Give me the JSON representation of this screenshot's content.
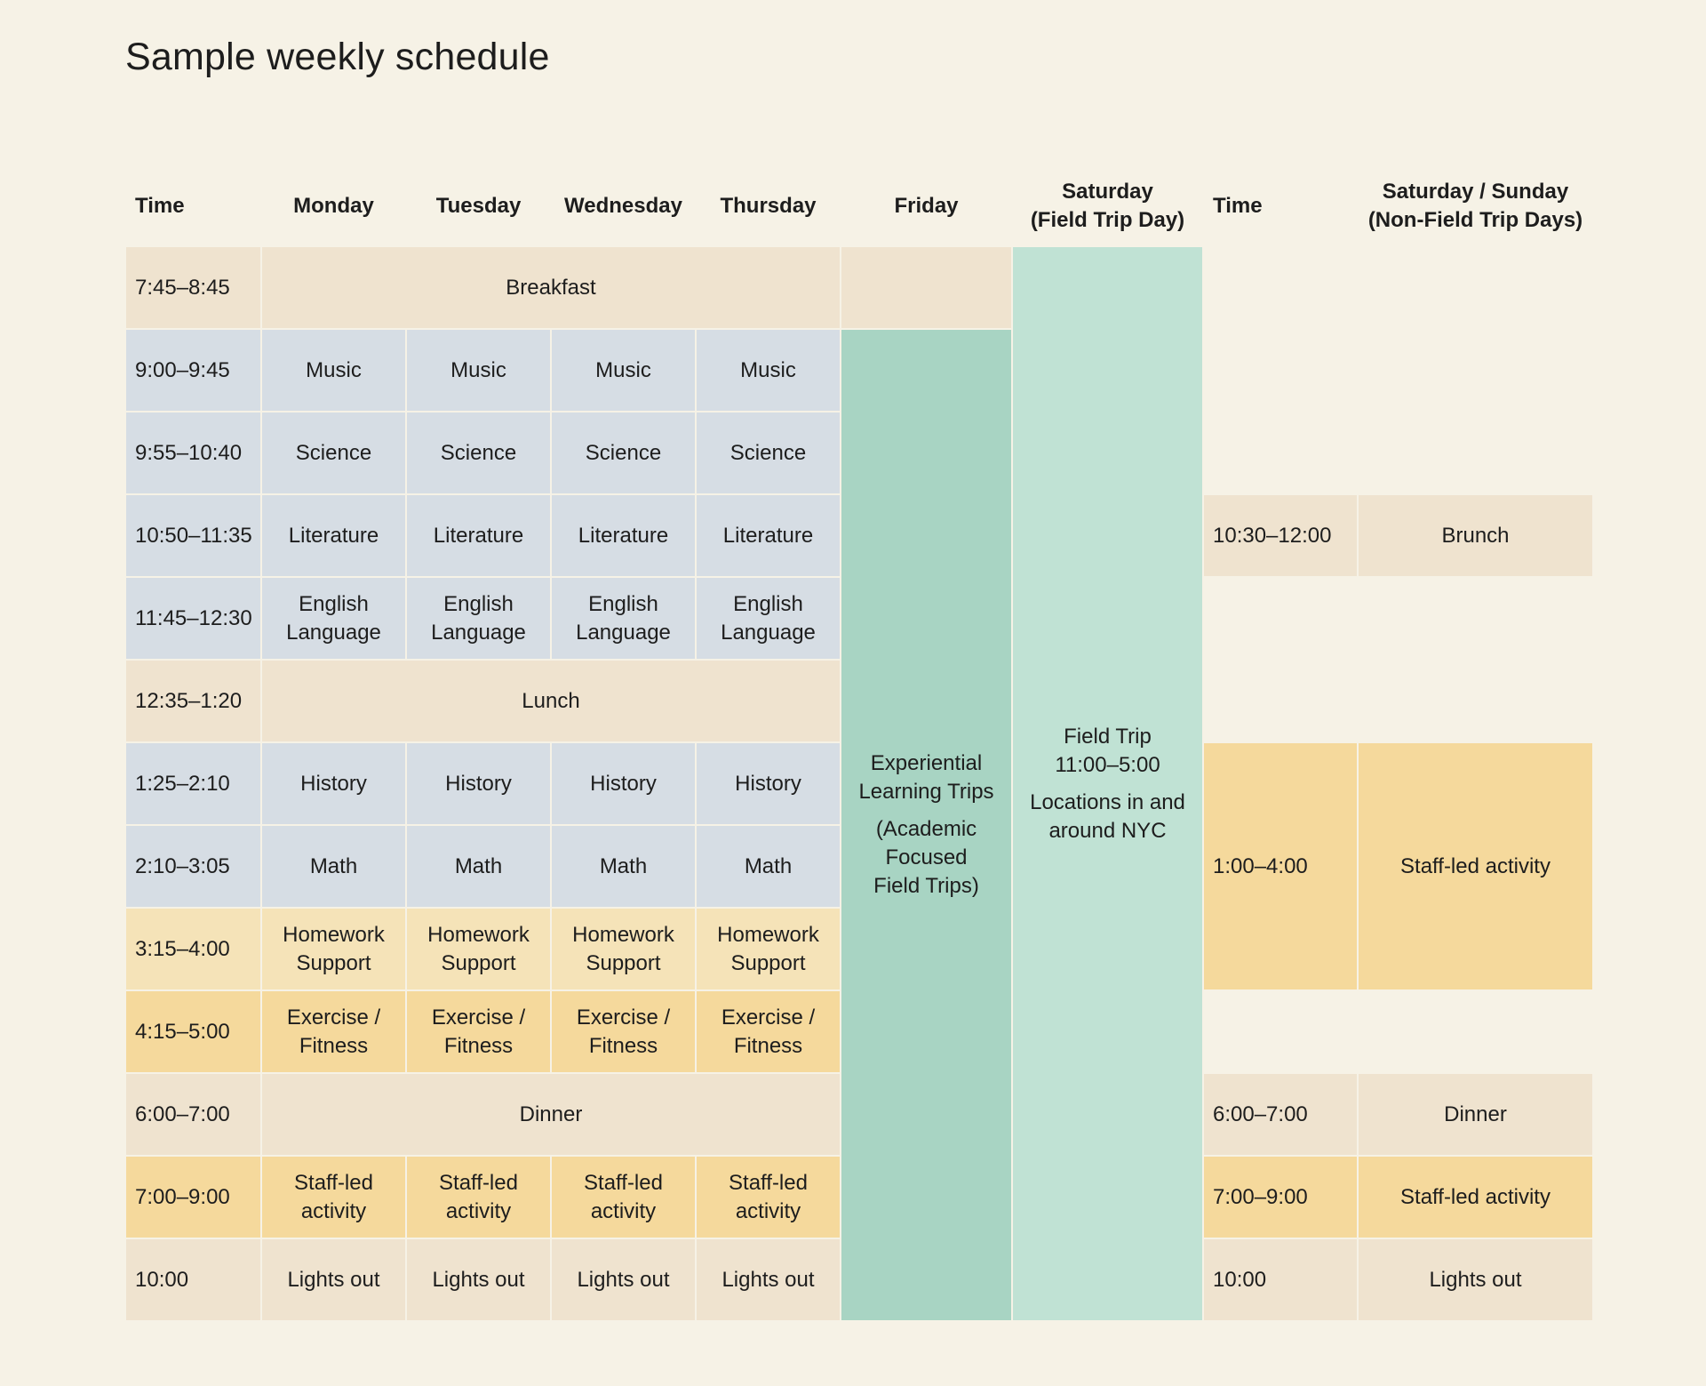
{
  "title": "Sample weekly schedule",
  "headers": {
    "time": "Time",
    "monday": "Monday",
    "tuesday": "Tuesday",
    "wednesday": "Wednesday",
    "thursday": "Thursday",
    "friday": "Friday",
    "saturday_line1": "Saturday",
    "saturday_line2": "(Field Trip Day)",
    "time2": "Time",
    "weekend_line1": "Saturday / Sunday",
    "weekend_line2": "(Non-Field Trip Days)"
  },
  "rows": [
    {
      "time": "7:45–8:45"
    },
    {
      "time": "9:00–9:45",
      "cells": [
        "Music",
        "Music",
        "Music",
        "Music"
      ]
    },
    {
      "time": "9:55–10:40",
      "cells": [
        "Science",
        "Science",
        "Science",
        "Science"
      ]
    },
    {
      "time": "10:50–11:35",
      "cells": [
        "Literature",
        "Literature",
        "Literature",
        "Literature"
      ]
    },
    {
      "time": "11:45–12:30",
      "cells": [
        [
          "English",
          "Language"
        ],
        [
          "English",
          "Language"
        ],
        [
          "English",
          "Language"
        ],
        [
          "English",
          "Language"
        ]
      ]
    },
    {
      "time": "12:35–1:20"
    },
    {
      "time": "1:25–2:10",
      "cells": [
        "History",
        "History",
        "History",
        "History"
      ]
    },
    {
      "time": "2:10–3:05",
      "cells": [
        "Math",
        "Math",
        "Math",
        "Math"
      ]
    },
    {
      "time": "3:15–4:00",
      "cells": [
        [
          "Homework",
          "Support"
        ],
        [
          "Homework",
          "Support"
        ],
        [
          "Homework",
          "Support"
        ],
        [
          "Homework",
          "Support"
        ]
      ]
    },
    {
      "time": "4:15–5:00",
      "cells": [
        [
          "Exercise /",
          "Fitness"
        ],
        [
          "Exercise /",
          "Fitness"
        ],
        [
          "Exercise /",
          "Fitness"
        ],
        [
          "Exercise /",
          "Fitness"
        ]
      ]
    },
    {
      "time": "6:00–7:00"
    },
    {
      "time": "7:00–9:00",
      "cells": [
        [
          "Staff-led",
          "activity"
        ],
        [
          "Staff-led",
          "activity"
        ],
        [
          "Staff-led",
          "activity"
        ],
        [
          "Staff-led",
          "activity"
        ]
      ]
    },
    {
      "time": "10:00",
      "cells": [
        "Lights out",
        "Lights out",
        "Lights out",
        "Lights out"
      ]
    }
  ],
  "merged": {
    "breakfast": "Breakfast",
    "lunch": "Lunch",
    "dinner": "Dinner"
  },
  "friday": {
    "line1": "Experiential",
    "line2": "Learning Trips",
    "line3": "(Academic",
    "line4": "Focused",
    "line5": "Field Trips)"
  },
  "saturday": {
    "line1": "Field Trip",
    "line2": "11:00–5:00",
    "line3": "Locations in and",
    "line4": "around NYC"
  },
  "weekend": [
    {
      "time": "10:30–12:00",
      "activity": "Brunch"
    },
    {
      "time": "1:00–4:00",
      "activity": "Staff-led activity"
    },
    {
      "time": "6:00–7:00",
      "activity": "Dinner"
    },
    {
      "time": "7:00–9:00",
      "activity": "Staff-led activity"
    },
    {
      "time": "10:00",
      "activity": "Lights out"
    }
  ],
  "colors": {
    "background": "#f6f2e6",
    "meal": "#efe3cf",
    "class": "#d6dde4",
    "homework": "#f5e3b8",
    "activity": "#f5d99c",
    "friday": "#a8d4c3",
    "saturday": "#c0e2d4"
  }
}
